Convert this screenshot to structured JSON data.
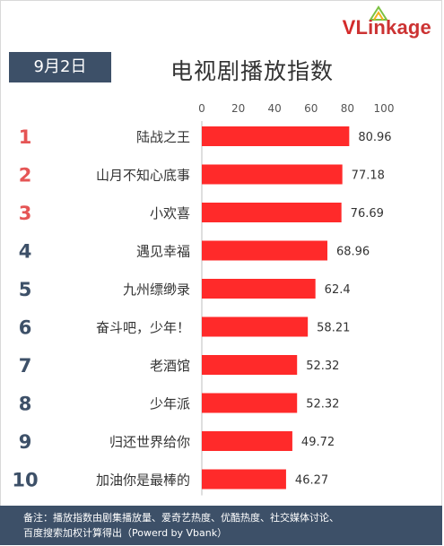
{
  "header": {
    "date": "9月2日",
    "title": "电视剧播放指数",
    "logo_v": "V",
    "logo_rest": "Linkage"
  },
  "colors": {
    "bar": "#ff2a2a",
    "rank_top3": "#e55555",
    "rank_other": "#3d5068",
    "header_bg": "#3d5068"
  },
  "chart_data": {
    "type": "bar",
    "orientation": "horizontal",
    "xlim": [
      0,
      100
    ],
    "ticks": [
      0,
      20,
      40,
      60,
      80,
      100
    ],
    "ranks": [
      "1",
      "2",
      "3",
      "4",
      "5",
      "6",
      "7",
      "8",
      "9",
      "10"
    ],
    "categories": [
      "陆战之王",
      "山月不知心底事",
      "小欢喜",
      "遇见幸福",
      "九州缥缈录",
      "奋斗吧，少年！",
      "老酒馆",
      "少年派",
      "归还世界给你",
      "加油你是最棒的"
    ],
    "values": [
      80.96,
      77.18,
      76.69,
      68.96,
      62.4,
      58.21,
      52.32,
      52.32,
      49.72,
      46.27
    ],
    "value_labels": [
      "80.96",
      "77.18",
      "76.69",
      "68.96",
      "62.4",
      "58.21",
      "52.32",
      "52.32",
      "49.72",
      "46.27"
    ]
  },
  "footer": {
    "note_line1": "备注：播放指数由剧集播放量、爱奇艺热度、优酷热度、社交媒体讨论、",
    "note_line2": "百度搜索加权计算得出（Powerd by Vbank）"
  }
}
